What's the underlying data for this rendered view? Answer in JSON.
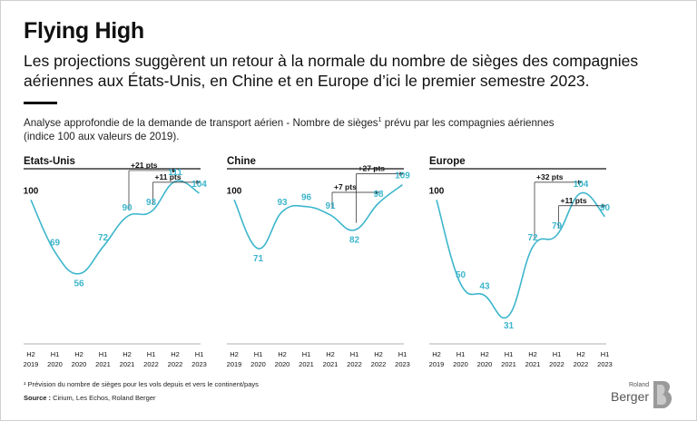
{
  "title": "Flying High",
  "subtitle": "Les projections suggèrent un retour à la normale du nombre de sièges des compagnies aériennes aux États-Unis, en Chine et en Europe d’ici le premier semestre 2023.",
  "description": {
    "text_before": "Analyse approfondie de la demande de transport aérien - Nombre de sièges",
    "footnote_marker": "1",
    "text_after": " prévu par les compagnies aériennes",
    "line2": "(indice 100 aux valeurs de 2019)."
  },
  "footnote": "¹ Prévision du nombre de sièges pour les vols depuis et vers le continent/pays",
  "source": {
    "label": "Source :",
    "text": " Cirium, Les Echos, Roland Berger"
  },
  "logo": {
    "small": "Roland",
    "big": "Berger",
    "mark": "B"
  },
  "colors": {
    "line": "#3db6cc",
    "text": "#111111",
    "axis": "#999999",
    "arrow": "#222222"
  },
  "chart_data": [
    {
      "type": "line",
      "title": "Etats-Unis",
      "categories": [
        [
          "H2",
          "2019"
        ],
        [
          "H1",
          "2020"
        ],
        [
          "H2",
          "2020"
        ],
        [
          "H1",
          "2021"
        ],
        [
          "H2",
          "2021"
        ],
        [
          "H1",
          "2022"
        ],
        [
          "H2",
          "2022"
        ],
        [
          "H1",
          "2023"
        ]
      ],
      "values": [
        100,
        69,
        56,
        72,
        90,
        93,
        111,
        104
      ],
      "ylim": [
        25,
        118
      ],
      "annotations": [
        {
          "label": "+21 pts",
          "from_index": 4,
          "to_index": 6
        },
        {
          "label": "+11 pts",
          "from_index": 5,
          "to_index": 7
        }
      ]
    },
    {
      "type": "line",
      "title": "Chine",
      "categories": [
        [
          "H2",
          "2019"
        ],
        [
          "H1",
          "2020"
        ],
        [
          "H2",
          "2020"
        ],
        [
          "H1",
          "2021"
        ],
        [
          "H2",
          "2021"
        ],
        [
          "H1",
          "2022"
        ],
        [
          "H2",
          "2022"
        ],
        [
          "H1",
          "2023"
        ]
      ],
      "values": [
        100,
        71,
        93,
        96,
        91,
        82,
        98,
        109
      ],
      "ylim": [
        25,
        118
      ],
      "annotations": [
        {
          "label": "+27 pts",
          "from_index": 5,
          "to_index": 7
        },
        {
          "label": "+7 pts",
          "from_index": 4,
          "to_index": 6
        }
      ]
    },
    {
      "type": "line",
      "title": "Europe",
      "categories": [
        [
          "H2",
          "2019"
        ],
        [
          "H1",
          "2020"
        ],
        [
          "H2",
          "2020"
        ],
        [
          "H1",
          "2021"
        ],
        [
          "H2",
          "2021"
        ],
        [
          "H1",
          "2022"
        ],
        [
          "H2",
          "2022"
        ],
        [
          "H1",
          "2023"
        ]
      ],
      "values": [
        100,
        50,
        43,
        31,
        72,
        79,
        104,
        90
      ],
      "ylim": [
        25,
        118
      ],
      "annotations": [
        {
          "label": "+32 pts",
          "from_index": 4,
          "to_index": 6
        },
        {
          "label": "+11 pts",
          "from_index": 5,
          "to_index": 7
        }
      ]
    }
  ]
}
